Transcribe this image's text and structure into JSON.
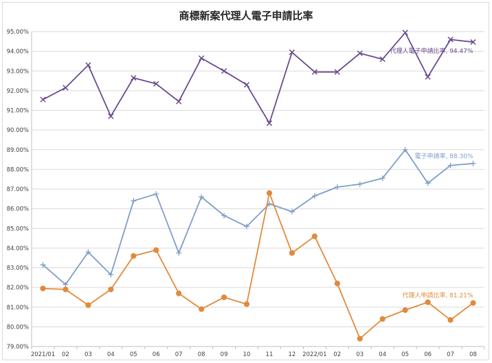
{
  "chart_data": {
    "type": "line",
    "title": "商標新案代理人電子申請比率",
    "categories": [
      "2021/01",
      "02",
      "03",
      "04",
      "05",
      "06",
      "07",
      "08",
      "09",
      "10",
      "11",
      "12",
      "2022/01",
      "02",
      "03",
      "04",
      "05",
      "06",
      "07",
      "08"
    ],
    "ylim": [
      79.0,
      95.0
    ],
    "ytick_step": 1.0,
    "ytick_labels": [
      "79.00%",
      "80.00%",
      "81.00%",
      "82.00%",
      "83.00%",
      "84.00%",
      "85.00%",
      "86.00%",
      "87.00%",
      "88.00%",
      "89.00%",
      "90.00%",
      "91.00%",
      "92.00%",
      "93.00%",
      "94.00%",
      "95.00%"
    ],
    "grid": true,
    "legend": "none",
    "series": [
      {
        "name": "代理人電子申請比率",
        "color": "#6a4a8e",
        "marker": "x",
        "end_label": "代理人電子申請比率, 94.47%",
        "values": [
          91.55,
          92.15,
          93.3,
          90.7,
          92.65,
          92.35,
          91.45,
          93.65,
          93.0,
          92.3,
          90.35,
          93.95,
          92.95,
          92.95,
          93.9,
          93.6,
          94.95,
          92.7,
          94.6,
          94.47
        ]
      },
      {
        "name": "電子申請率",
        "color": "#7f9ec7",
        "marker": "plus",
        "end_label": "電子申請率, 88.30%",
        "values": [
          83.15,
          82.15,
          83.8,
          82.65,
          86.4,
          86.75,
          83.75,
          86.6,
          85.65,
          85.1,
          86.25,
          85.85,
          86.65,
          87.1,
          87.25,
          87.55,
          89.0,
          87.3,
          88.2,
          88.3
        ]
      },
      {
        "name": "代理人申請比率",
        "color": "#e08a3c",
        "marker": "circle",
        "end_label": "代理人申請比率, 81.21%",
        "values": [
          81.95,
          81.9,
          81.1,
          81.9,
          83.6,
          83.9,
          81.7,
          80.9,
          81.5,
          81.15,
          86.8,
          83.75,
          84.6,
          82.2,
          79.4,
          80.4,
          80.85,
          81.25,
          80.35,
          81.21
        ]
      }
    ]
  }
}
